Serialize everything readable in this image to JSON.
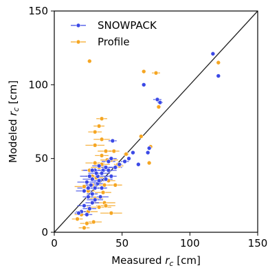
{
  "chart_data": {
    "type": "scatter",
    "xlabel": "Measured r_c [cm]",
    "ylabel": "Modeled r_c [cm]",
    "xlabel_parts": {
      "main": "Measured ",
      "symbol": "r",
      "sub": "c",
      "unit": " [cm]"
    },
    "ylabel_parts": {
      "main": "Modeled ",
      "symbol": "r",
      "sub": "c",
      "unit": " [cm]"
    },
    "xlim": [
      0,
      150
    ],
    "ylim": [
      0,
      150
    ],
    "xticks": [
      0,
      50,
      100,
      150
    ],
    "yticks": [
      0,
      50,
      100,
      150
    ],
    "xtick_labels": [
      "0",
      "50",
      "100",
      "150"
    ],
    "ytick_labels": [
      "0",
      "50",
      "100",
      "150"
    ],
    "grid": false,
    "reference_line": {
      "type": "1:1",
      "from": [
        0,
        0
      ],
      "to": [
        150,
        150
      ],
      "color": "#222222"
    },
    "legend": {
      "position": "top-left"
    },
    "series": [
      {
        "name": "SNOWPACK",
        "color": "#3b49e6",
        "points": [
          [
            117,
            121
          ],
          [
            121,
            106
          ],
          [
            76,
            90
          ],
          [
            78,
            88
          ],
          [
            66,
            100
          ],
          [
            69,
            54
          ],
          [
            70,
            57
          ],
          [
            62,
            46
          ],
          [
            58,
            54
          ],
          [
            55,
            50
          ],
          [
            52,
            48
          ],
          [
            48,
            46
          ],
          [
            43,
            62
          ],
          [
            42,
            50
          ],
          [
            40,
            48
          ],
          [
            38,
            44
          ],
          [
            36,
            42
          ],
          [
            35,
            40
          ],
          [
            33,
            45
          ],
          [
            32,
            38
          ],
          [
            30,
            42
          ],
          [
            28,
            36
          ],
          [
            27,
            32
          ],
          [
            25,
            30
          ],
          [
            24,
            34
          ],
          [
            22,
            28
          ],
          [
            30,
            30
          ],
          [
            32,
            33
          ],
          [
            28,
            42
          ],
          [
            26,
            38
          ],
          [
            35,
            30
          ],
          [
            38,
            36
          ],
          [
            40,
            42
          ],
          [
            42,
            38
          ],
          [
            45,
            44
          ],
          [
            30,
            22
          ],
          [
            28,
            20
          ],
          [
            25,
            24
          ],
          [
            22,
            18
          ],
          [
            20,
            14
          ],
          [
            18,
            13
          ],
          [
            24,
            12
          ],
          [
            26,
            16
          ],
          [
            28,
            26
          ],
          [
            34,
            24
          ],
          [
            33,
            35
          ],
          [
            31,
            40
          ]
        ],
        "xerr": [
          0,
          0,
          3,
          2,
          0,
          0,
          0,
          0,
          0,
          0,
          3,
          2,
          3,
          4,
          5,
          6,
          7,
          6,
          5,
          8,
          9,
          7,
          6,
          8,
          7,
          6,
          8,
          5,
          6,
          7,
          4,
          5,
          6,
          4,
          5,
          6,
          5,
          4,
          5,
          4,
          3,
          4,
          5,
          4,
          6,
          5,
          6
        ]
      },
      {
        "name": "Profile",
        "color": "#f5a623",
        "points": [
          [
            26,
            116
          ],
          [
            66,
            109
          ],
          [
            75,
            108
          ],
          [
            121,
            115
          ],
          [
            77,
            85
          ],
          [
            64,
            65
          ],
          [
            71,
            58
          ],
          [
            70,
            47
          ],
          [
            53,
            53
          ],
          [
            48,
            45
          ],
          [
            35,
            77
          ],
          [
            33,
            72
          ],
          [
            30,
            68
          ],
          [
            35,
            63
          ],
          [
            30,
            59
          ],
          [
            38,
            55
          ],
          [
            35,
            52
          ],
          [
            44,
            55
          ],
          [
            42,
            49
          ],
          [
            47,
            46
          ],
          [
            39,
            49
          ],
          [
            35,
            46
          ],
          [
            30,
            47
          ],
          [
            33,
            44
          ],
          [
            31,
            37
          ],
          [
            28,
            32
          ],
          [
            22,
            31
          ],
          [
            25,
            28
          ],
          [
            30,
            23
          ],
          [
            37,
            20
          ],
          [
            33,
            17
          ],
          [
            38,
            18
          ],
          [
            42,
            13
          ],
          [
            20,
            12
          ],
          [
            17,
            9
          ],
          [
            24,
            6
          ],
          [
            29,
            7
          ],
          [
            22,
            3
          ],
          [
            25,
            14
          ],
          [
            45,
            32
          ],
          [
            40,
            35
          ],
          [
            36,
            27
          ],
          [
            28,
            38
          ],
          [
            26,
            42
          ],
          [
            37,
            32
          ]
        ],
        "xerr": [
          0,
          0,
          3,
          0,
          0,
          0,
          0,
          0,
          2,
          3,
          4,
          4,
          5,
          6,
          7,
          6,
          5,
          4,
          5,
          3,
          5,
          6,
          7,
          6,
          5,
          6,
          7,
          5,
          6,
          8,
          9,
          7,
          8,
          5,
          4,
          5,
          6,
          4,
          7,
          5,
          5,
          6,
          5,
          6,
          4
        ]
      }
    ]
  }
}
